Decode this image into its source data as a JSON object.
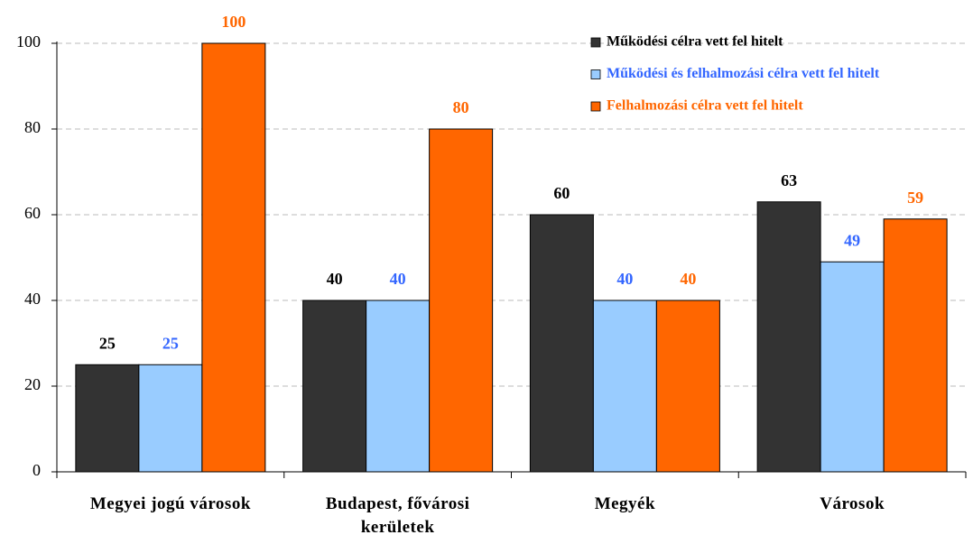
{
  "chart_data": {
    "type": "bar",
    "categories": [
      "Megyei jogú városok",
      "Budapest, fővárosi kerületek",
      "Megyék",
      "Városok"
    ],
    "series": [
      {
        "name": "Működési célra vett fel hitelt",
        "color": "#333333",
        "label_color": "#000000",
        "values": [
          25,
          40,
          60,
          63
        ]
      },
      {
        "name": "Működési és felhalmozási célra vett fel hitelt",
        "color": "#99ccff",
        "label_color": "#3366ff",
        "values": [
          25,
          40,
          40,
          49
        ]
      },
      {
        "name": "Felhalmozási célra vett fel hitelt",
        "color": "#ff6600",
        "label_color": "#ff6600",
        "values": [
          100,
          80,
          40,
          59
        ]
      }
    ],
    "ylim": [
      0,
      100
    ],
    "yticks": [
      0,
      20,
      40,
      60,
      80,
      100
    ],
    "grid": true,
    "legend": "top-right"
  }
}
